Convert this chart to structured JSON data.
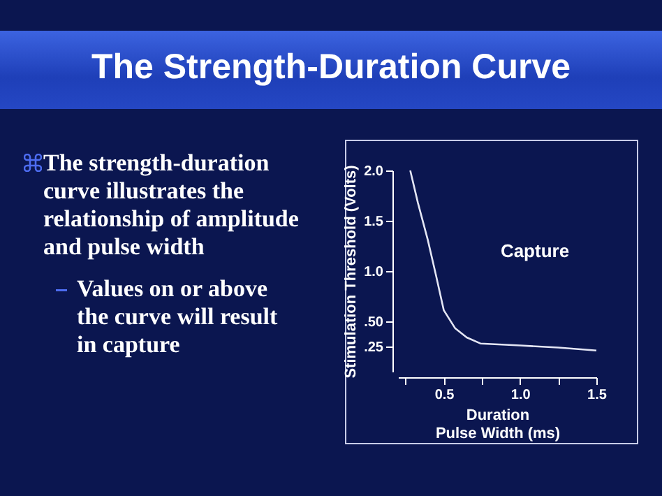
{
  "chart_data": {
    "type": "line",
    "title": "The Strength-Duration Curve",
    "xlabel": "Duration\nPulse Width (ms)",
    "ylabel": "Stimulation Threshold (Volts)",
    "x": [
      0.28,
      0.33,
      0.395,
      0.45,
      0.5,
      0.575,
      0.65,
      0.74,
      1.0,
      1.25,
      1.5
    ],
    "series": [
      {
        "color": "#e4e6f4",
        "values": [
          2.0,
          1.68,
          1.31,
          0.95,
          0.61,
          0.43,
          0.34,
          0.28,
          0.26,
          0.24,
          0.21
        ]
      }
    ],
    "xlim": [
      0.2,
      1.5
    ],
    "ylim": [
      0,
      2.0
    ],
    "xticks": [
      {
        "value": 0.25,
        "label": null
      },
      {
        "value": 0.5,
        "label": "0.5"
      },
      {
        "value": 0.75,
        "label": null
      },
      {
        "value": 1.0,
        "label": "1.0"
      },
      {
        "value": 1.25,
        "label": null
      },
      {
        "value": 1.5,
        "label": "1.5"
      }
    ],
    "yticks": [
      {
        "value": 0.25,
        "label": ".25"
      },
      {
        "value": 0.5,
        "label": ".50"
      },
      {
        "value": 1.0,
        "label": "1.0"
      },
      {
        "value": 1.5,
        "label": "1.5"
      },
      {
        "value": 2.0,
        "label": "2.0"
      }
    ],
    "grid": false,
    "marker": "none",
    "line_style": "solid",
    "annotations": [
      "The strength-duration curve illustrates the relationship of amplitude and pulse width",
      "Values on or above the curve will result in capture",
      "Capture"
    ]
  }
}
